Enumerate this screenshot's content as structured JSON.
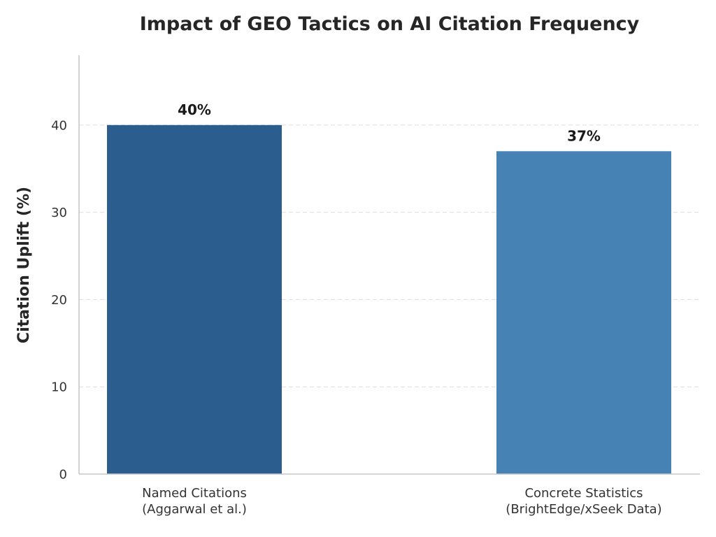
{
  "chart_data": {
    "type": "bar",
    "title": "Impact of GEO Tactics on AI Citation Frequency",
    "xlabel": "",
    "ylabel": "Citation Uplift (%)",
    "ylim": [
      0,
      48
    ],
    "yticks": [
      0,
      10,
      20,
      30,
      40
    ],
    "grid": "horizontal dashed",
    "categories": [
      [
        "Named Citations",
        "(Aggarwal et al.)"
      ],
      [
        "Concrete Statistics",
        "(BrightEdge/xSeek Data)"
      ]
    ],
    "values": [
      40,
      37
    ],
    "value_labels": [
      "40%",
      "37%"
    ],
    "colors": [
      "#2c5d8f",
      "#4682b4"
    ]
  }
}
